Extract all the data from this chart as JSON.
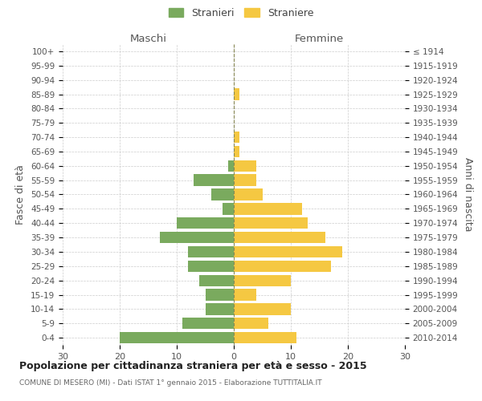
{
  "age_groups": [
    "100+",
    "95-99",
    "90-94",
    "85-89",
    "80-84",
    "75-79",
    "70-74",
    "65-69",
    "60-64",
    "55-59",
    "50-54",
    "45-49",
    "40-44",
    "35-39",
    "30-34",
    "25-29",
    "20-24",
    "15-19",
    "10-14",
    "5-9",
    "0-4"
  ],
  "birth_years": [
    "≤ 1914",
    "1915-1919",
    "1920-1924",
    "1925-1929",
    "1930-1934",
    "1935-1939",
    "1940-1944",
    "1945-1949",
    "1950-1954",
    "1955-1959",
    "1960-1964",
    "1965-1969",
    "1970-1974",
    "1975-1979",
    "1980-1984",
    "1985-1989",
    "1990-1994",
    "1995-1999",
    "2000-2004",
    "2005-2009",
    "2010-2014"
  ],
  "males": [
    0,
    0,
    0,
    0,
    0,
    0,
    0,
    0,
    1,
    7,
    4,
    2,
    10,
    13,
    8,
    8,
    6,
    5,
    5,
    9,
    20
  ],
  "females": [
    0,
    0,
    0,
    1,
    0,
    0,
    1,
    1,
    4,
    4,
    5,
    12,
    13,
    16,
    19,
    17,
    10,
    4,
    10,
    6,
    11
  ],
  "male_color": "#7aaa5e",
  "female_color": "#f5c842",
  "title": "Popolazione per cittadinanza straniera per età e sesso - 2015",
  "subtitle": "COMUNE DI MESERO (MI) - Dati ISTAT 1° gennaio 2015 - Elaborazione TUTTITALIA.IT",
  "xlabel_left": "Maschi",
  "xlabel_right": "Femmine",
  "ylabel_left": "Fasce di età",
  "ylabel_right": "Anni di nascita",
  "legend_stranieri": "Stranieri",
  "legend_straniere": "Straniere",
  "xlim": 30,
  "background_color": "#ffffff",
  "grid_color": "#cccccc",
  "bar_height": 0.8
}
